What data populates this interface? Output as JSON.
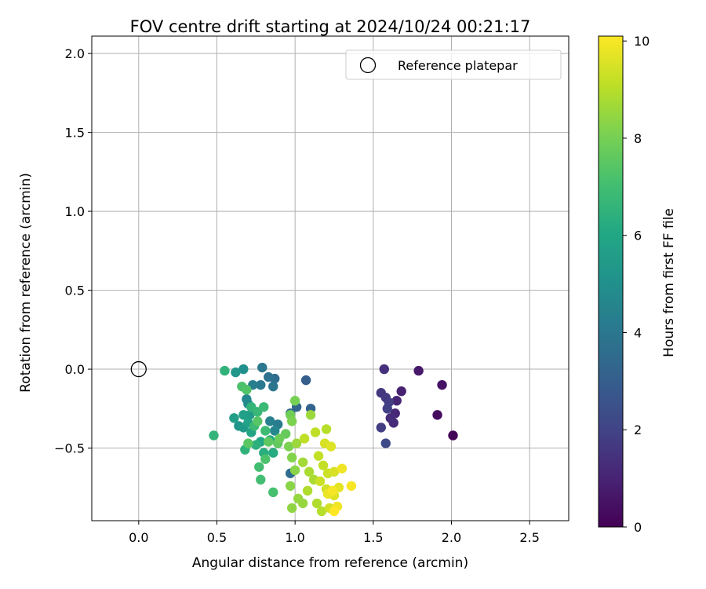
{
  "chart_data": {
    "type": "scatter",
    "title": "FOV centre drift starting at 2024/10/24 00:21:17",
    "xlabel": "Angular distance from reference (arcmin)",
    "ylabel": "Rotation from reference (arcmin)",
    "xlim": [
      -0.3,
      2.75
    ],
    "ylim": [
      -0.96,
      2.11
    ],
    "xticks": [
      0.0,
      0.5,
      1.0,
      1.5,
      2.0,
      2.5
    ],
    "xtick_labels": [
      "0.0",
      "0.5",
      "1.0",
      "1.5",
      "2.0",
      "2.5"
    ],
    "yticks": [
      -0.5,
      0.0,
      0.5,
      1.0,
      1.5,
      2.0
    ],
    "ytick_labels": [
      "−0.5",
      "0.0",
      "0.5",
      "1.0",
      "1.5",
      "2.0"
    ],
    "grid": true,
    "legend": {
      "placement": "top-right",
      "entries": [
        "Reference platepar"
      ]
    },
    "reference_point": {
      "label": "Reference platepar",
      "x": 0.0,
      "y": 0.0
    },
    "colorbar": {
      "label": "Hours from first FF file",
      "colormap": "viridis",
      "range": [
        0,
        10.1
      ],
      "ticks": [
        0,
        2,
        4,
        6,
        8,
        10
      ],
      "tick_labels": [
        "0",
        "2",
        "4",
        "6",
        "8",
        "10"
      ]
    },
    "points": [
      {
        "x": 2.01,
        "y": -0.42,
        "h": 0.1
      },
      {
        "x": 1.91,
        "y": -0.29,
        "h": 0.3
      },
      {
        "x": 1.94,
        "y": -0.1,
        "h": 0.5
      },
      {
        "x": 1.79,
        "y": -0.01,
        "h": 0.7
      },
      {
        "x": 1.68,
        "y": -0.14,
        "h": 0.9
      },
      {
        "x": 1.65,
        "y": -0.2,
        "h": 1.0
      },
      {
        "x": 1.64,
        "y": -0.28,
        "h": 1.1
      },
      {
        "x": 1.63,
        "y": -0.34,
        "h": 1.2
      },
      {
        "x": 1.61,
        "y": -0.31,
        "h": 1.3
      },
      {
        "x": 1.57,
        "y": 0.0,
        "h": 1.4
      },
      {
        "x": 1.55,
        "y": -0.15,
        "h": 1.6
      },
      {
        "x": 1.58,
        "y": -0.18,
        "h": 1.7
      },
      {
        "x": 1.6,
        "y": -0.21,
        "h": 1.8
      },
      {
        "x": 1.59,
        "y": -0.25,
        "h": 1.9
      },
      {
        "x": 1.55,
        "y": -0.37,
        "h": 1.8
      },
      {
        "x": 1.58,
        "y": -0.47,
        "h": 2.2
      },
      {
        "x": 1.07,
        "y": -0.07,
        "h": 3.0
      },
      {
        "x": 1.1,
        "y": -0.25,
        "h": 3.2
      },
      {
        "x": 1.01,
        "y": -0.24,
        "h": 3.3
      },
      {
        "x": 0.97,
        "y": -0.28,
        "h": 3.5
      },
      {
        "x": 0.97,
        "y": -0.66,
        "h": 3.6
      },
      {
        "x": 0.87,
        "y": -0.06,
        "h": 3.6
      },
      {
        "x": 0.83,
        "y": -0.05,
        "h": 3.8
      },
      {
        "x": 0.79,
        "y": 0.01,
        "h": 4.0
      },
      {
        "x": 0.86,
        "y": -0.11,
        "h": 3.9
      },
      {
        "x": 0.78,
        "y": -0.1,
        "h": 4.1
      },
      {
        "x": 0.73,
        "y": -0.1,
        "h": 4.3
      },
      {
        "x": 0.89,
        "y": -0.35,
        "h": 4.2
      },
      {
        "x": 0.84,
        "y": -0.33,
        "h": 4.4
      },
      {
        "x": 0.87,
        "y": -0.39,
        "h": 4.6
      },
      {
        "x": 0.69,
        "y": -0.19,
        "h": 4.6
      },
      {
        "x": 0.7,
        "y": -0.22,
        "h": 4.8
      },
      {
        "x": 0.67,
        "y": 0.0,
        "h": 5.0
      },
      {
        "x": 0.62,
        "y": -0.02,
        "h": 5.3
      },
      {
        "x": 0.64,
        "y": -0.36,
        "h": 5.2
      },
      {
        "x": 0.67,
        "y": -0.37,
        "h": 5.4
      },
      {
        "x": 0.71,
        "y": -0.29,
        "h": 5.5
      },
      {
        "x": 0.61,
        "y": -0.31,
        "h": 5.6
      },
      {
        "x": 0.67,
        "y": -0.29,
        "h": 5.7
      },
      {
        "x": 0.7,
        "y": -0.34,
        "h": 5.8
      },
      {
        "x": 0.72,
        "y": -0.4,
        "h": 5.9
      },
      {
        "x": 0.78,
        "y": -0.46,
        "h": 6.0
      },
      {
        "x": 0.84,
        "y": -0.45,
        "h": 6.1
      },
      {
        "x": 0.86,
        "y": -0.53,
        "h": 6.2
      },
      {
        "x": 0.8,
        "y": -0.53,
        "h": 6.3
      },
      {
        "x": 0.75,
        "y": -0.48,
        "h": 6.4
      },
      {
        "x": 0.68,
        "y": -0.51,
        "h": 6.5
      },
      {
        "x": 0.55,
        "y": -0.01,
        "h": 6.5
      },
      {
        "x": 0.48,
        "y": -0.42,
        "h": 6.6
      },
      {
        "x": 0.72,
        "y": -0.24,
        "h": 6.6
      },
      {
        "x": 0.76,
        "y": -0.27,
        "h": 6.7
      },
      {
        "x": 0.8,
        "y": -0.24,
        "h": 6.8
      },
      {
        "x": 0.74,
        "y": -0.36,
        "h": 6.8
      },
      {
        "x": 0.81,
        "y": -0.39,
        "h": 6.9
      },
      {
        "x": 0.77,
        "y": -0.62,
        "h": 7.0
      },
      {
        "x": 0.78,
        "y": -0.7,
        "h": 7.0
      },
      {
        "x": 0.86,
        "y": -0.78,
        "h": 7.1
      },
      {
        "x": 0.81,
        "y": -0.57,
        "h": 7.2
      },
      {
        "x": 0.66,
        "y": -0.11,
        "h": 7.2
      },
      {
        "x": 0.69,
        "y": -0.13,
        "h": 7.3
      },
      {
        "x": 0.76,
        "y": -0.33,
        "h": 7.4
      },
      {
        "x": 0.7,
        "y": -0.47,
        "h": 7.5
      },
      {
        "x": 0.83,
        "y": -0.46,
        "h": 7.6
      },
      {
        "x": 0.89,
        "y": -0.47,
        "h": 7.6
      },
      {
        "x": 0.94,
        "y": -0.41,
        "h": 7.7
      },
      {
        "x": 0.9,
        "y": -0.44,
        "h": 7.8
      },
      {
        "x": 0.97,
        "y": -0.29,
        "h": 7.9
      },
      {
        "x": 1.0,
        "y": -0.2,
        "h": 8.0
      },
      {
        "x": 0.98,
        "y": -0.33,
        "h": 8.1
      },
      {
        "x": 0.96,
        "y": -0.49,
        "h": 8.1
      },
      {
        "x": 0.98,
        "y": -0.56,
        "h": 8.2
      },
      {
        "x": 1.0,
        "y": -0.64,
        "h": 8.3
      },
      {
        "x": 0.97,
        "y": -0.74,
        "h": 8.3
      },
      {
        "x": 0.98,
        "y": -0.88,
        "h": 8.4
      },
      {
        "x": 1.02,
        "y": -0.82,
        "h": 8.5
      },
      {
        "x": 1.05,
        "y": -0.85,
        "h": 8.5
      },
      {
        "x": 1.1,
        "y": -0.29,
        "h": 8.6
      },
      {
        "x": 1.01,
        "y": -0.47,
        "h": 8.6
      },
      {
        "x": 1.05,
        "y": -0.59,
        "h": 8.7
      },
      {
        "x": 1.09,
        "y": -0.65,
        "h": 8.8
      },
      {
        "x": 1.12,
        "y": -0.7,
        "h": 8.8
      },
      {
        "x": 1.08,
        "y": -0.77,
        "h": 8.9
      },
      {
        "x": 1.14,
        "y": -0.85,
        "h": 8.9
      },
      {
        "x": 1.17,
        "y": -0.9,
        "h": 9.0
      },
      {
        "x": 1.2,
        "y": -0.38,
        "h": 9.0
      },
      {
        "x": 1.13,
        "y": -0.4,
        "h": 9.1
      },
      {
        "x": 1.06,
        "y": -0.44,
        "h": 9.1
      },
      {
        "x": 1.15,
        "y": -0.55,
        "h": 9.2
      },
      {
        "x": 1.18,
        "y": -0.61,
        "h": 9.2
      },
      {
        "x": 1.21,
        "y": -0.66,
        "h": 9.3
      },
      {
        "x": 1.16,
        "y": -0.71,
        "h": 9.3
      },
      {
        "x": 1.2,
        "y": -0.76,
        "h": 9.4
      },
      {
        "x": 1.22,
        "y": -0.88,
        "h": 9.4
      },
      {
        "x": 1.25,
        "y": -0.65,
        "h": 9.5
      },
      {
        "x": 1.19,
        "y": -0.47,
        "h": 9.5
      },
      {
        "x": 1.23,
        "y": -0.49,
        "h": 9.6
      },
      {
        "x": 1.25,
        "y": -0.8,
        "h": 9.6
      },
      {
        "x": 1.28,
        "y": -0.75,
        "h": 9.7
      },
      {
        "x": 1.21,
        "y": -0.79,
        "h": 9.8
      },
      {
        "x": 1.27,
        "y": -0.87,
        "h": 9.9
      },
      {
        "x": 1.3,
        "y": -0.63,
        "h": 9.9
      },
      {
        "x": 1.36,
        "y": -0.74,
        "h": 10.0
      },
      {
        "x": 1.24,
        "y": -0.77,
        "h": 10.0
      },
      {
        "x": 1.25,
        "y": -0.9,
        "h": 10.1
      }
    ]
  }
}
